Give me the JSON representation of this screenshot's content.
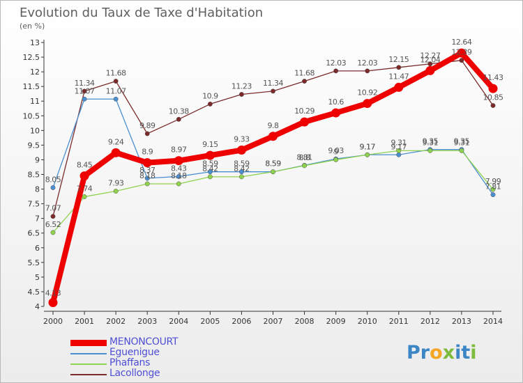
{
  "header": {
    "title": "Evolution du Taux de Taxe d'Habitation",
    "subtitle": "(en %)"
  },
  "logo": {
    "text": "Proxiti",
    "letters": [
      {
        "ch": "P",
        "color": "#3d86c6"
      },
      {
        "ch": "r",
        "color": "#3d86c6"
      },
      {
        "ch": "o",
        "color": "#f5a623"
      },
      {
        "ch": "x",
        "color": "#7dbb3c"
      },
      {
        "ch": "i",
        "color": "#3d86c6"
      },
      {
        "ch": "t",
        "color": "#3d86c6"
      },
      {
        "ch": "i",
        "color": "#7dbb3c"
      }
    ]
  },
  "chart_data": {
    "type": "line",
    "title": "Evolution du Taux de Taxe d'Habitation",
    "subtitle": "(en %)",
    "x": [
      "2000",
      "2001",
      "2002",
      "2003",
      "2004",
      "2005",
      "2006",
      "2007",
      "2008",
      "2009",
      "2010",
      "2011",
      "2012",
      "2013",
      "2014"
    ],
    "ylim": [
      4,
      13
    ],
    "yticks": [
      4,
      4.5,
      5,
      5.5,
      6,
      6.5,
      7,
      7.5,
      8,
      8.5,
      9,
      9.5,
      10,
      10.5,
      11,
      11.5,
      12,
      12.5,
      13
    ],
    "grid": false,
    "legend_position": "bottom-left",
    "series": [
      {
        "name": "MENONCOURT",
        "color": "#ee0000",
        "values": [
          4.13,
          8.45,
          9.24,
          8.9,
          8.97,
          9.15,
          9.33,
          9.8,
          10.29,
          10.6,
          10.92,
          11.47,
          12.04,
          12.64,
          11.43
        ],
        "labels": [
          "4.13",
          "8.45",
          "9.24",
          "8.9",
          "8.97",
          "9.15",
          "9.33",
          "9.8",
          "10.29",
          "10.6",
          "10.92",
          "11.47",
          "12.04",
          "12.64",
          "11.43"
        ]
      },
      {
        "name": "Eguenigue",
        "color": "#4a8fd0",
        "values": [
          8.05,
          11.07,
          11.07,
          8.37,
          8.43,
          8.59,
          8.59,
          8.59,
          8.81,
          9.03,
          9.17,
          9.17,
          9.35,
          9.35,
          7.81
        ],
        "labels": [
          "8.05",
          "11.07",
          "11.07",
          "8.37",
          "8.43",
          "8.59",
          "8.59",
          "8.59",
          "8.81",
          "9.03",
          "9.17",
          "9.17",
          "9.35",
          "9.35",
          "7.81"
        ]
      },
      {
        "name": "Phaffans",
        "color": "#8fd24d",
        "values": [
          6.52,
          7.74,
          7.93,
          8.18,
          8.18,
          8.42,
          8.42,
          8.59,
          8.8,
          9.0,
          9.17,
          9.31,
          9.31,
          9.31,
          7.99
        ],
        "labels": [
          "6.52",
          "7.74",
          "7.93",
          "8.18",
          "8.18",
          "8.42",
          "8.42",
          "8.59",
          "8.8",
          "9",
          "9.17",
          "9.31",
          "9.31",
          "9.31",
          "7.99"
        ]
      },
      {
        "name": "Lacollonge",
        "color": "#7a2a2a",
        "values": [
          7.07,
          11.34,
          11.68,
          9.89,
          10.38,
          10.9,
          11.23,
          11.34,
          11.68,
          12.03,
          12.03,
          12.15,
          12.27,
          12.39,
          10.85
        ],
        "labels": [
          "7.07",
          "11.34",
          "11.68",
          "9.89",
          "10.38",
          "10.9",
          "11.23",
          "11.34",
          "11.68",
          "12.03",
          "12.03",
          "12.15",
          "12.27",
          "12.39",
          "10.85"
        ]
      }
    ]
  }
}
